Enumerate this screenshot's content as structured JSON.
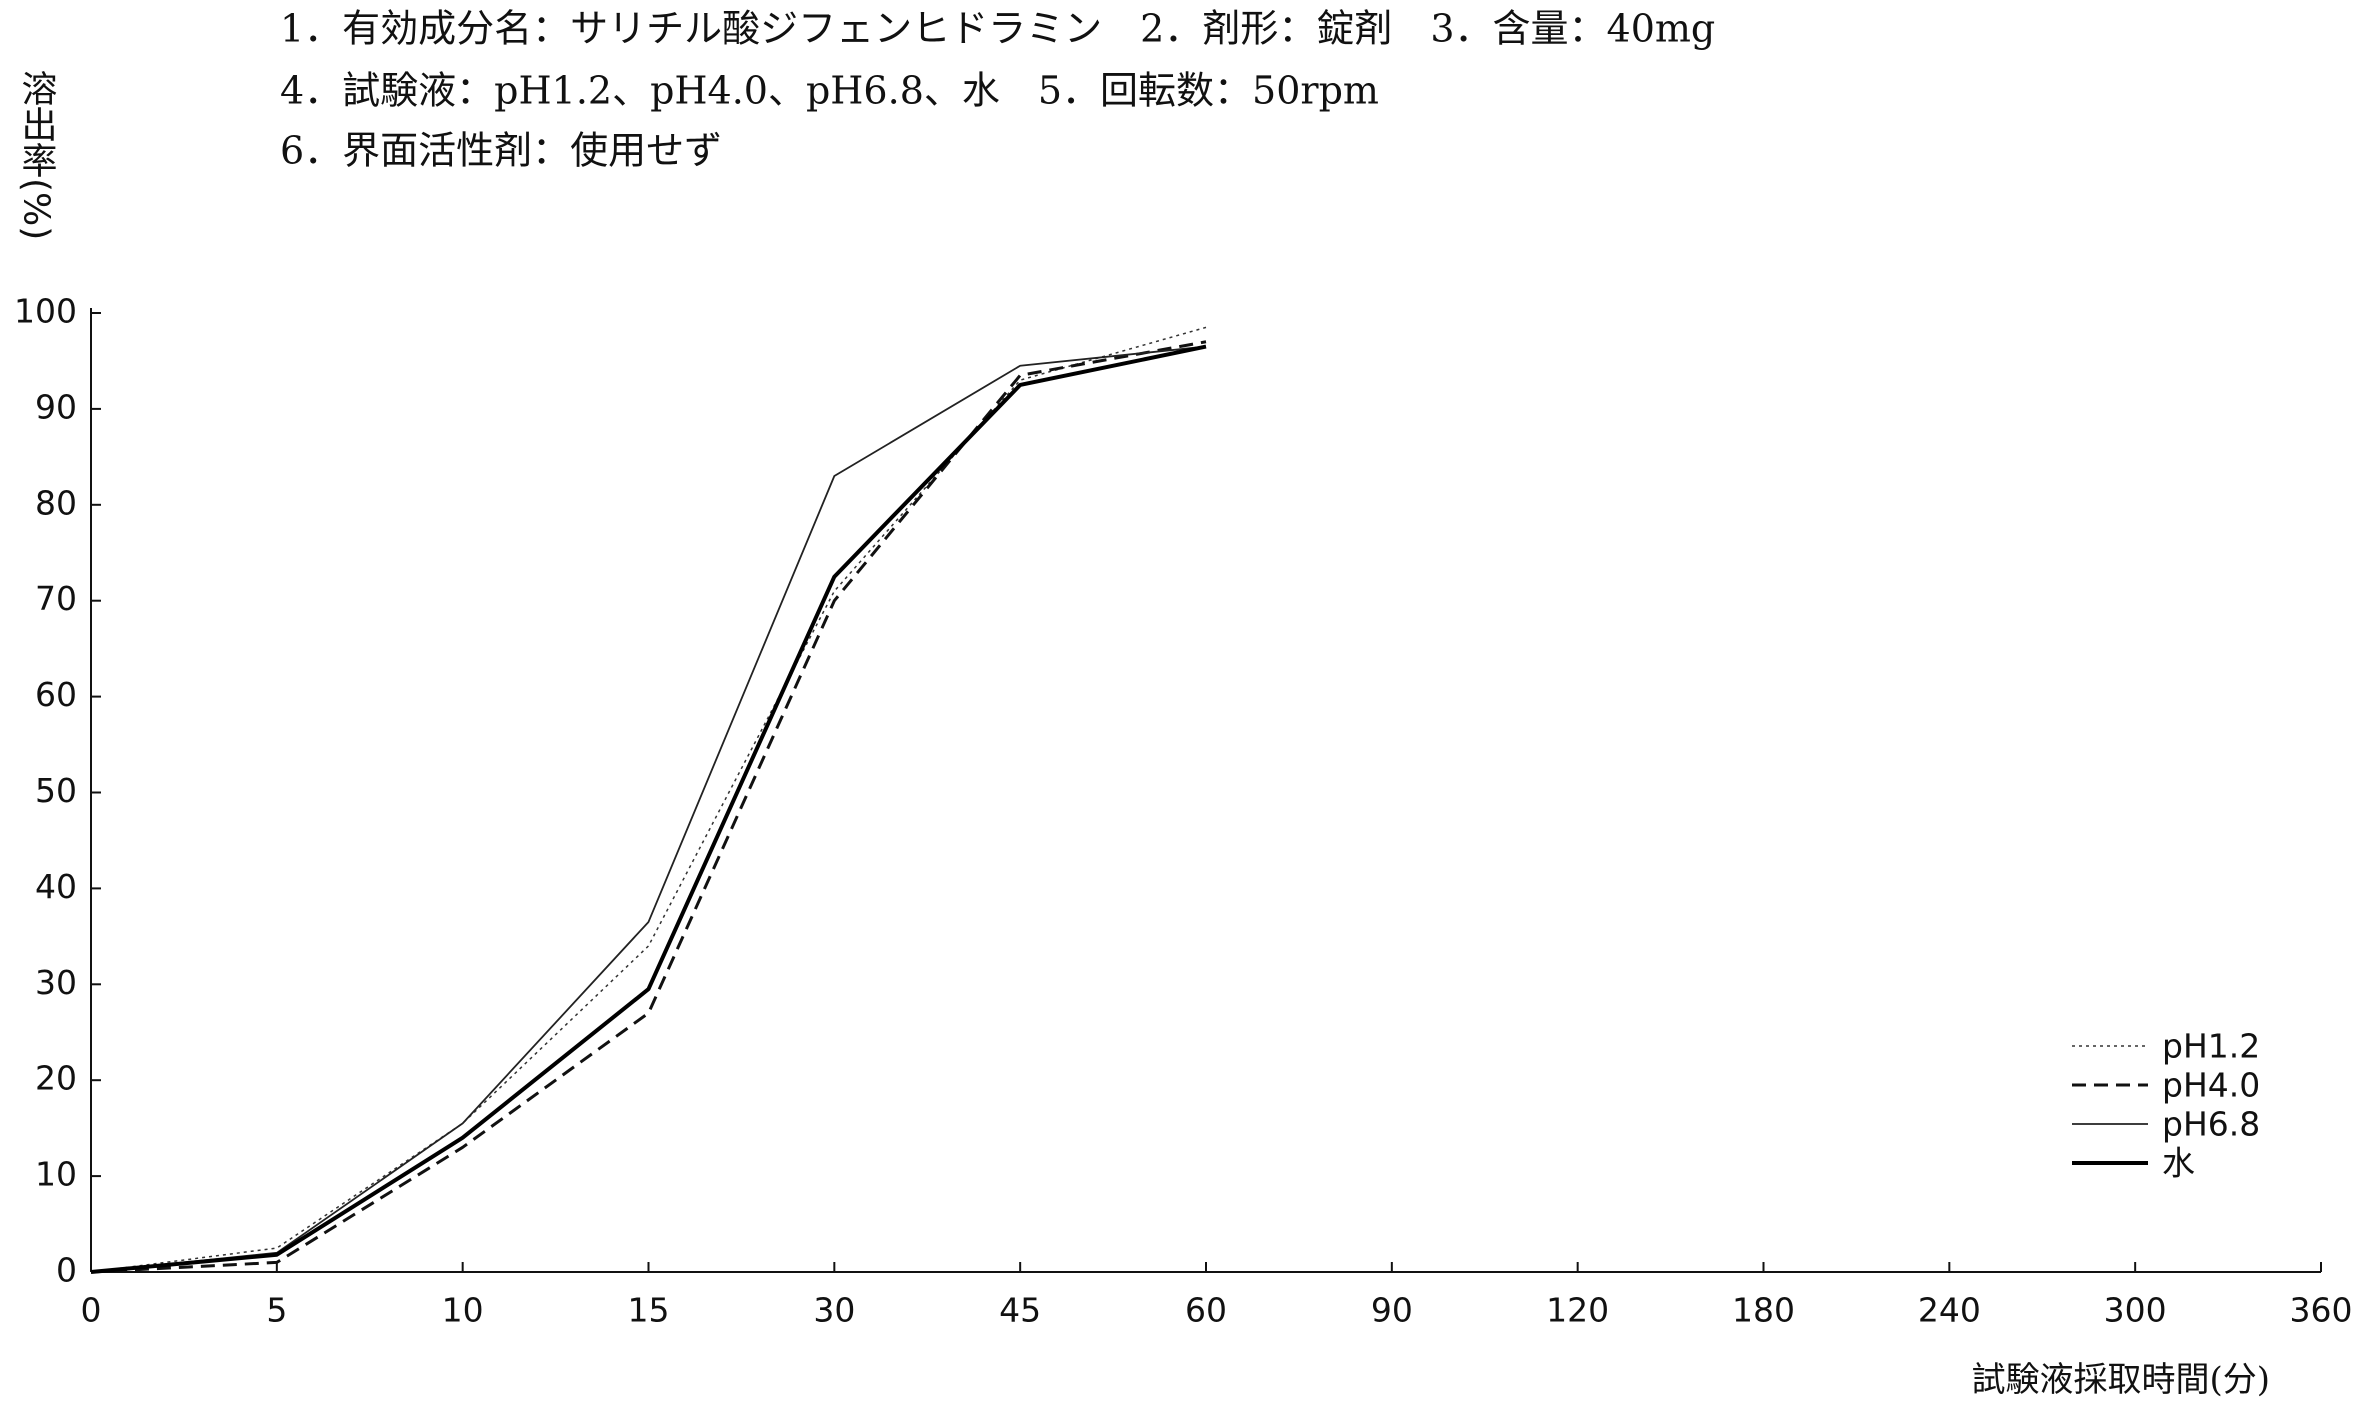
{
  "chart_data": {
    "type": "line",
    "annotations": [
      "1．有効成分名：サリチル酸ジフェンヒドラミン　2．剤形：錠剤　3．含量：40mg",
      "4．試験液：pH1.2、pH4.0、pH6.8、水　5．回転数：50rpm",
      "6．界面活性剤：使用せず"
    ],
    "y_label": "溶出率(%)",
    "x_label": "試験液採取時間(分)",
    "categories": [
      "0",
      "5",
      "10",
      "15",
      "30",
      "45",
      "60",
      "90",
      "120",
      "180",
      "240",
      "300",
      "360"
    ],
    "series": [
      {
        "name": "pH1.2",
        "color": "#333333",
        "dash": "3,4",
        "width": 1.5,
        "values": [
          0,
          2.5,
          15.5,
          34,
          71,
          93,
          98.5,
          null,
          null,
          null,
          null,
          null,
          null
        ]
      },
      {
        "name": "pH4.0",
        "color": "#111111",
        "dash": "14,8",
        "width": 3,
        "values": [
          0,
          1,
          13,
          27,
          70,
          93.5,
          97,
          null,
          null,
          null,
          null,
          null,
          null
        ]
      },
      {
        "name": "pH6.8",
        "color": "#222222",
        "dash": "none",
        "width": 1.8,
        "values": [
          0,
          2,
          15.5,
          36.5,
          83,
          94.5,
          96.5,
          null,
          null,
          null,
          null,
          null,
          null
        ]
      },
      {
        "name": "水",
        "color": "#000000",
        "dash": "none",
        "width": 4,
        "values": [
          0,
          1.8,
          14,
          29.5,
          72.5,
          92.5,
          96.5,
          null,
          null,
          null,
          null,
          null,
          null
        ]
      }
    ],
    "ylim": [
      0,
      100
    ],
    "yticks": [
      0,
      10,
      20,
      30,
      40,
      50,
      60,
      70,
      80,
      90,
      100
    ],
    "legend": "lower right"
  }
}
